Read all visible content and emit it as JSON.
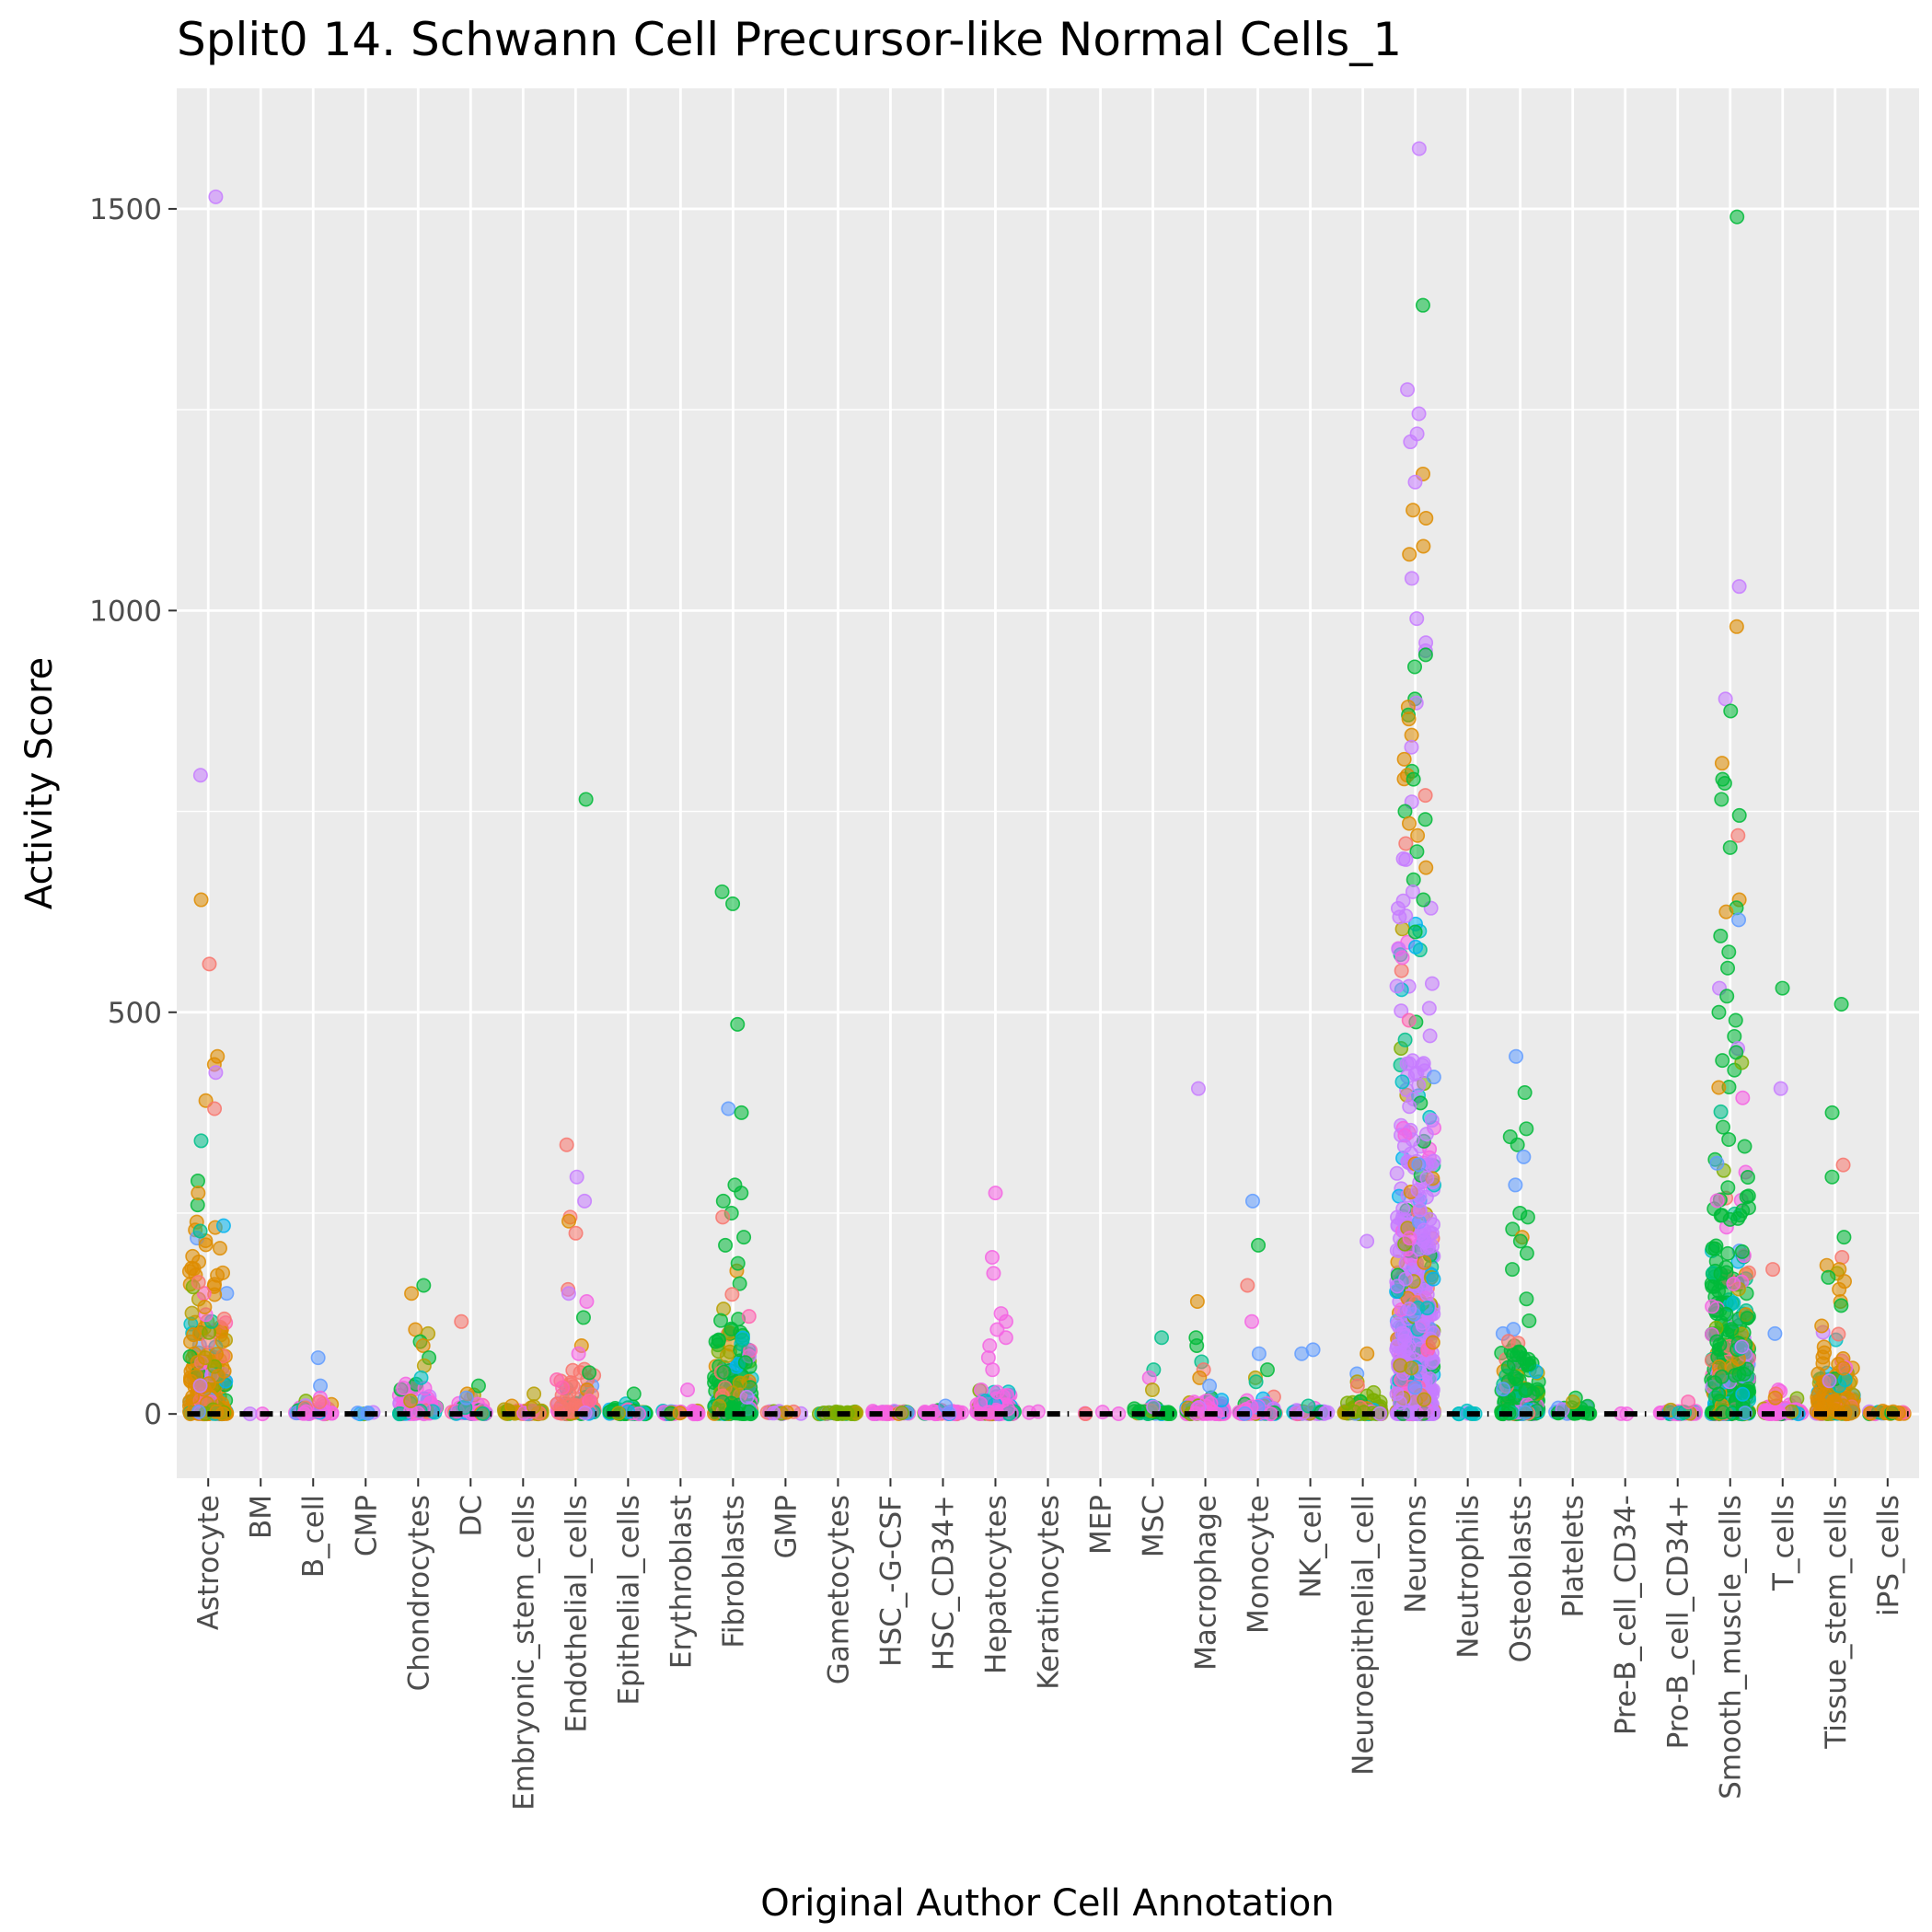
{
  "chart_data": {
    "type": "scatter",
    "title": "Split0 14. Schwann Cell Precursor-like Normal Cells_1",
    "xlabel": "Original Author Cell Annotation",
    "ylabel": "Activity Score",
    "ylim": [
      -80,
      1650
    ],
    "yticks": [
      0,
      500,
      1000,
      1500
    ],
    "grid": true,
    "legend": "none",
    "point_opacity": 0.55,
    "colors": [
      "#F8766D",
      "#DE8C00",
      "#B79F00",
      "#7CAE00",
      "#00BA38",
      "#00C08B",
      "#00BFC4",
      "#00B4F0",
      "#619CFF",
      "#C77CFF",
      "#F564E3",
      "#FF64B0"
    ],
    "categories": [
      "Astrocyte",
      "BM",
      "B_cell",
      "CMP",
      "Chondrocytes",
      "DC",
      "Embryonic_stem_cells",
      "Endothelial_cells",
      "Epithelial_cells",
      "Erythroblast",
      "Fibroblasts",
      "GMP",
      "Gametocytes",
      "HSC_-G-CSF",
      "HSC_CD34+",
      "Hepatocytes",
      "Keratinocytes",
      "MEP",
      "MSC",
      "Macrophage",
      "Monocyte",
      "NK_cell",
      "Neuroepithelial_cell",
      "Neurons",
      "Neutrophils",
      "Osteoblasts",
      "Platelets",
      "Pre-B_cell_CD34-",
      "Pro-B_cell_CD34+",
      "Smooth_muscle_cells",
      "T_cells",
      "Tissue_stem_cells",
      "iPS_cells"
    ],
    "medians": [
      0,
      0,
      0,
      0,
      0,
      0,
      0,
      0,
      0,
      0,
      0,
      0,
      0,
      0,
      0,
      0,
      0,
      0,
      0,
      0,
      0,
      0,
      0,
      0,
      0,
      0,
      0,
      0,
      0,
      0,
      0,
      0,
      0
    ],
    "series": [
      {
        "category": "Astrocyte",
        "dominant_color": 1,
        "count": 260,
        "spread": 120,
        "max": 300,
        "outliers": [
          [
            1515,
            9
          ],
          [
            795,
            9
          ],
          [
            640,
            1
          ],
          [
            560,
            0
          ],
          [
            445,
            1
          ],
          [
            435,
            1
          ],
          [
            425,
            9
          ],
          [
            390,
            1
          ],
          [
            380,
            0
          ],
          [
            340,
            5
          ],
          [
            290,
            4
          ],
          [
            275,
            1
          ]
        ]
      },
      {
        "category": "BM",
        "dominant_color": 10,
        "count": 2,
        "spread": 2,
        "max": 2,
        "outliers": []
      },
      {
        "category": "B_cell",
        "dominant_color": 10,
        "count": 40,
        "spread": 8,
        "max": 20,
        "outliers": [
          [
            70,
            8
          ],
          [
            35,
            8
          ],
          [
            20,
            10
          ],
          [
            15,
            0
          ]
        ]
      },
      {
        "category": "CMP",
        "dominant_color": 8,
        "count": 6,
        "spread": 2,
        "max": 3,
        "outliers": []
      },
      {
        "category": "Chondrocytes",
        "dominant_color": 10,
        "count": 70,
        "spread": 20,
        "max": 50,
        "outliers": [
          [
            160,
            4
          ],
          [
            150,
            1
          ],
          [
            105,
            1
          ],
          [
            100,
            2
          ],
          [
            90,
            4
          ],
          [
            85,
            1
          ],
          [
            70,
            4
          ],
          [
            60,
            2
          ],
          [
            45,
            6
          ]
        ]
      },
      {
        "category": "DC",
        "dominant_color": 10,
        "count": 50,
        "spread": 10,
        "max": 25,
        "outliers": [
          [
            115,
            0
          ],
          [
            35,
            4
          ],
          [
            25,
            1
          ],
          [
            20,
            8
          ]
        ]
      },
      {
        "category": "Embryonic_stem_cells",
        "dominant_color": 2,
        "count": 60,
        "spread": 5,
        "max": 10,
        "outliers": [
          [
            25,
            2
          ],
          [
            10,
            1
          ]
        ]
      },
      {
        "category": "Endothelial_cells",
        "dominant_color": 0,
        "count": 90,
        "spread": 30,
        "max": 80,
        "outliers": [
          [
            765,
            4
          ],
          [
            335,
            0
          ],
          [
            295,
            9
          ],
          [
            265,
            9
          ],
          [
            245,
            0
          ],
          [
            240,
            1
          ],
          [
            225,
            0
          ],
          [
            155,
            0
          ],
          [
            150,
            9
          ],
          [
            140,
            10
          ],
          [
            120,
            4
          ],
          [
            85,
            1
          ],
          [
            75,
            10
          ]
        ]
      },
      {
        "category": "Epithelial_cells",
        "dominant_color": 4,
        "count": 60,
        "spread": 6,
        "max": 25,
        "outliers": [
          [
            25,
            4
          ]
        ]
      },
      {
        "category": "Erythroblast",
        "dominant_color": 10,
        "count": 30,
        "spread": 3,
        "max": 10,
        "outliers": [
          [
            30,
            10
          ]
        ]
      },
      {
        "category": "Fibroblasts",
        "dominant_color": 4,
        "count": 220,
        "spread": 90,
        "max": 200,
        "outliers": [
          [
            650,
            4
          ],
          [
            635,
            4
          ],
          [
            485,
            4
          ],
          [
            380,
            8
          ],
          [
            375,
            4
          ],
          [
            285,
            4
          ],
          [
            275,
            4
          ],
          [
            265,
            4
          ],
          [
            250,
            4
          ],
          [
            245,
            0
          ],
          [
            220,
            4
          ],
          [
            210,
            4
          ]
        ]
      },
      {
        "category": "GMP",
        "dominant_color": 9,
        "count": 15,
        "spread": 2,
        "max": 4,
        "outliers": []
      },
      {
        "category": "Gametocytes",
        "dominant_color": 3,
        "count": 30,
        "spread": 2,
        "max": 6,
        "outliers": []
      },
      {
        "category": "HSC_-G-CSF",
        "dominant_color": 10,
        "count": 40,
        "spread": 2,
        "max": 4,
        "outliers": []
      },
      {
        "category": "HSC_CD34+",
        "dominant_color": 10,
        "count": 30,
        "spread": 3,
        "max": 8,
        "outliers": [
          [
            10,
            8
          ]
        ]
      },
      {
        "category": "Hepatocytes",
        "dominant_color": 10,
        "count": 160,
        "spread": 15,
        "max": 50,
        "outliers": [
          [
            275,
            10
          ],
          [
            195,
            10
          ],
          [
            175,
            10
          ],
          [
            125,
            10
          ],
          [
            115,
            10
          ],
          [
            105,
            10
          ],
          [
            95,
            10
          ],
          [
            85,
            10
          ],
          [
            70,
            10
          ],
          [
            55,
            10
          ]
        ]
      },
      {
        "category": "Keratinocytes",
        "dominant_color": 10,
        "count": 2,
        "spread": 1,
        "max": 1,
        "outliers": []
      },
      {
        "category": "MEP",
        "dominant_color": 10,
        "count": 4,
        "spread": 1,
        "max": 2,
        "outliers": []
      },
      {
        "category": "MSC",
        "dominant_color": 4,
        "count": 30,
        "spread": 6,
        "max": 15,
        "outliers": [
          [
            95,
            5
          ],
          [
            55,
            5
          ],
          [
            45,
            10
          ],
          [
            30,
            2
          ]
        ]
      },
      {
        "category": "Macrophage",
        "dominant_color": 10,
        "count": 120,
        "spread": 10,
        "max": 30,
        "outliers": [
          [
            405,
            9
          ],
          [
            140,
            1
          ],
          [
            95,
            4
          ],
          [
            85,
            4
          ],
          [
            65,
            5
          ],
          [
            55,
            0
          ],
          [
            45,
            1
          ],
          [
            35,
            8
          ]
        ]
      },
      {
        "category": "Monocyte",
        "dominant_color": 10,
        "count": 100,
        "spread": 10,
        "max": 30,
        "outliers": [
          [
            265,
            8
          ],
          [
            210,
            4
          ],
          [
            160,
            0
          ],
          [
            115,
            10
          ],
          [
            75,
            8
          ],
          [
            55,
            4
          ],
          [
            45,
            2
          ],
          [
            40,
            5
          ]
        ]
      },
      {
        "category": "NK_cell",
        "dominant_color": 9,
        "count": 40,
        "spread": 4,
        "max": 10,
        "outliers": [
          [
            80,
            8
          ],
          [
            75,
            8
          ],
          [
            10,
            5
          ]
        ]
      },
      {
        "category": "Neuroepithelial_cell",
        "dominant_color": 3,
        "count": 120,
        "spread": 10,
        "max": 30,
        "outliers": [
          [
            215,
            9
          ],
          [
            75,
            1
          ],
          [
            50,
            8
          ],
          [
            40,
            2
          ],
          [
            35,
            0
          ]
        ]
      },
      {
        "category": "Neurons",
        "dominant_color": 9,
        "count": 700,
        "spread": 280,
        "max": 800,
        "outliers": [
          [
            1575,
            9
          ],
          [
            1380,
            4
          ],
          [
            1275,
            9
          ],
          [
            1245,
            9
          ],
          [
            1220,
            9
          ],
          [
            1210,
            9
          ],
          [
            1170,
            1
          ],
          [
            1160,
            9
          ],
          [
            1125,
            1
          ],
          [
            1115,
            1
          ],
          [
            1080,
            1
          ],
          [
            1070,
            1
          ],
          [
            1040,
            9
          ],
          [
            990,
            9
          ],
          [
            960,
            9
          ],
          [
            950,
            9
          ],
          [
            945,
            4
          ],
          [
            930,
            4
          ],
          [
            890,
            4
          ],
          [
            885,
            9
          ],
          [
            880,
            1
          ],
          [
            870,
            4
          ],
          [
            865,
            1
          ],
          [
            845,
            1
          ],
          [
            830,
            9
          ],
          [
            815,
            1
          ],
          [
            800,
            4
          ],
          [
            795,
            1
          ],
          [
            790,
            4
          ],
          [
            770,
            0
          ],
          [
            750,
            4
          ],
          [
            740,
            4
          ],
          [
            735,
            1
          ],
          [
            720,
            1
          ],
          [
            710,
            0
          ],
          [
            700,
            4
          ],
          [
            690,
            9
          ],
          [
            680,
            1
          ],
          [
            665,
            4
          ],
          [
            650,
            9
          ],
          [
            640,
            4
          ],
          [
            620,
            9
          ],
          [
            600,
            4
          ]
        ]
      },
      {
        "category": "Neutrophils",
        "dominant_color": 6,
        "count": 8,
        "spread": 2,
        "max": 4,
        "outliers": []
      },
      {
        "category": "Osteoblasts",
        "dominant_color": 4,
        "count": 170,
        "spread": 60,
        "max": 150,
        "outliers": [
          [
            445,
            8
          ],
          [
            400,
            4
          ],
          [
            355,
            4
          ],
          [
            345,
            4
          ],
          [
            335,
            4
          ],
          [
            320,
            8
          ],
          [
            285,
            8
          ],
          [
            250,
            4
          ],
          [
            245,
            4
          ],
          [
            230,
            4
          ],
          [
            220,
            1
          ],
          [
            215,
            4
          ],
          [
            200,
            4
          ],
          [
            180,
            4
          ]
        ]
      },
      {
        "category": "Platelets",
        "dominant_color": 4,
        "count": 25,
        "spread": 5,
        "max": 12,
        "outliers": [
          [
            20,
            4
          ],
          [
            15,
            2
          ]
        ]
      },
      {
        "category": "Pre-B_cell_CD34-",
        "dominant_color": 10,
        "count": 2,
        "spread": 1,
        "max": 1,
        "outliers": []
      },
      {
        "category": "Pro-B_cell_CD34+",
        "dominant_color": 10,
        "count": 30,
        "spread": 4,
        "max": 12,
        "outliers": [
          [
            15,
            11
          ]
        ]
      },
      {
        "category": "Smooth_muscle_cells",
        "dominant_color": 4,
        "count": 400,
        "spread": 180,
        "max": 450,
        "outliers": [
          [
            1490,
            4
          ],
          [
            1030,
            9
          ],
          [
            980,
            1
          ],
          [
            890,
            9
          ],
          [
            875,
            4
          ],
          [
            810,
            1
          ],
          [
            790,
            4
          ],
          [
            785,
            4
          ],
          [
            765,
            4
          ],
          [
            745,
            4
          ],
          [
            720,
            0
          ],
          [
            705,
            4
          ],
          [
            640,
            1
          ],
          [
            630,
            4
          ],
          [
            625,
            1
          ],
          [
            615,
            8
          ],
          [
            595,
            4
          ],
          [
            575,
            4
          ],
          [
            555,
            4
          ],
          [
            530,
            9
          ],
          [
            520,
            4
          ],
          [
            500,
            4
          ],
          [
            490,
            4
          ],
          [
            470,
            4
          ],
          [
            455,
            9
          ],
          [
            450,
            4
          ],
          [
            440,
            4
          ]
        ]
      },
      {
        "category": "T_cells",
        "dominant_color": 10,
        "count": 80,
        "spread": 8,
        "max": 30,
        "outliers": [
          [
            530,
            4
          ],
          [
            405,
            9
          ],
          [
            180,
            0
          ],
          [
            100,
            8
          ],
          [
            30,
            10
          ],
          [
            25,
            0
          ],
          [
            20,
            1
          ]
        ]
      },
      {
        "category": "Tissue_stem_cells",
        "dominant_color": 1,
        "count": 200,
        "spread": 40,
        "max": 110,
        "outliers": [
          [
            510,
            4
          ],
          [
            375,
            4
          ],
          [
            310,
            0
          ],
          [
            295,
            4
          ],
          [
            220,
            4
          ],
          [
            195,
            0
          ],
          [
            185,
            1
          ],
          [
            180,
            1
          ],
          [
            175,
            2
          ],
          [
            170,
            4
          ],
          [
            165,
            1
          ],
          [
            155,
            1
          ],
          [
            140,
            1
          ],
          [
            135,
            4
          ]
        ]
      },
      {
        "category": "iPS_cells",
        "dominant_color": 1,
        "count": 25,
        "spread": 2,
        "max": 5,
        "outliers": []
      }
    ]
  }
}
